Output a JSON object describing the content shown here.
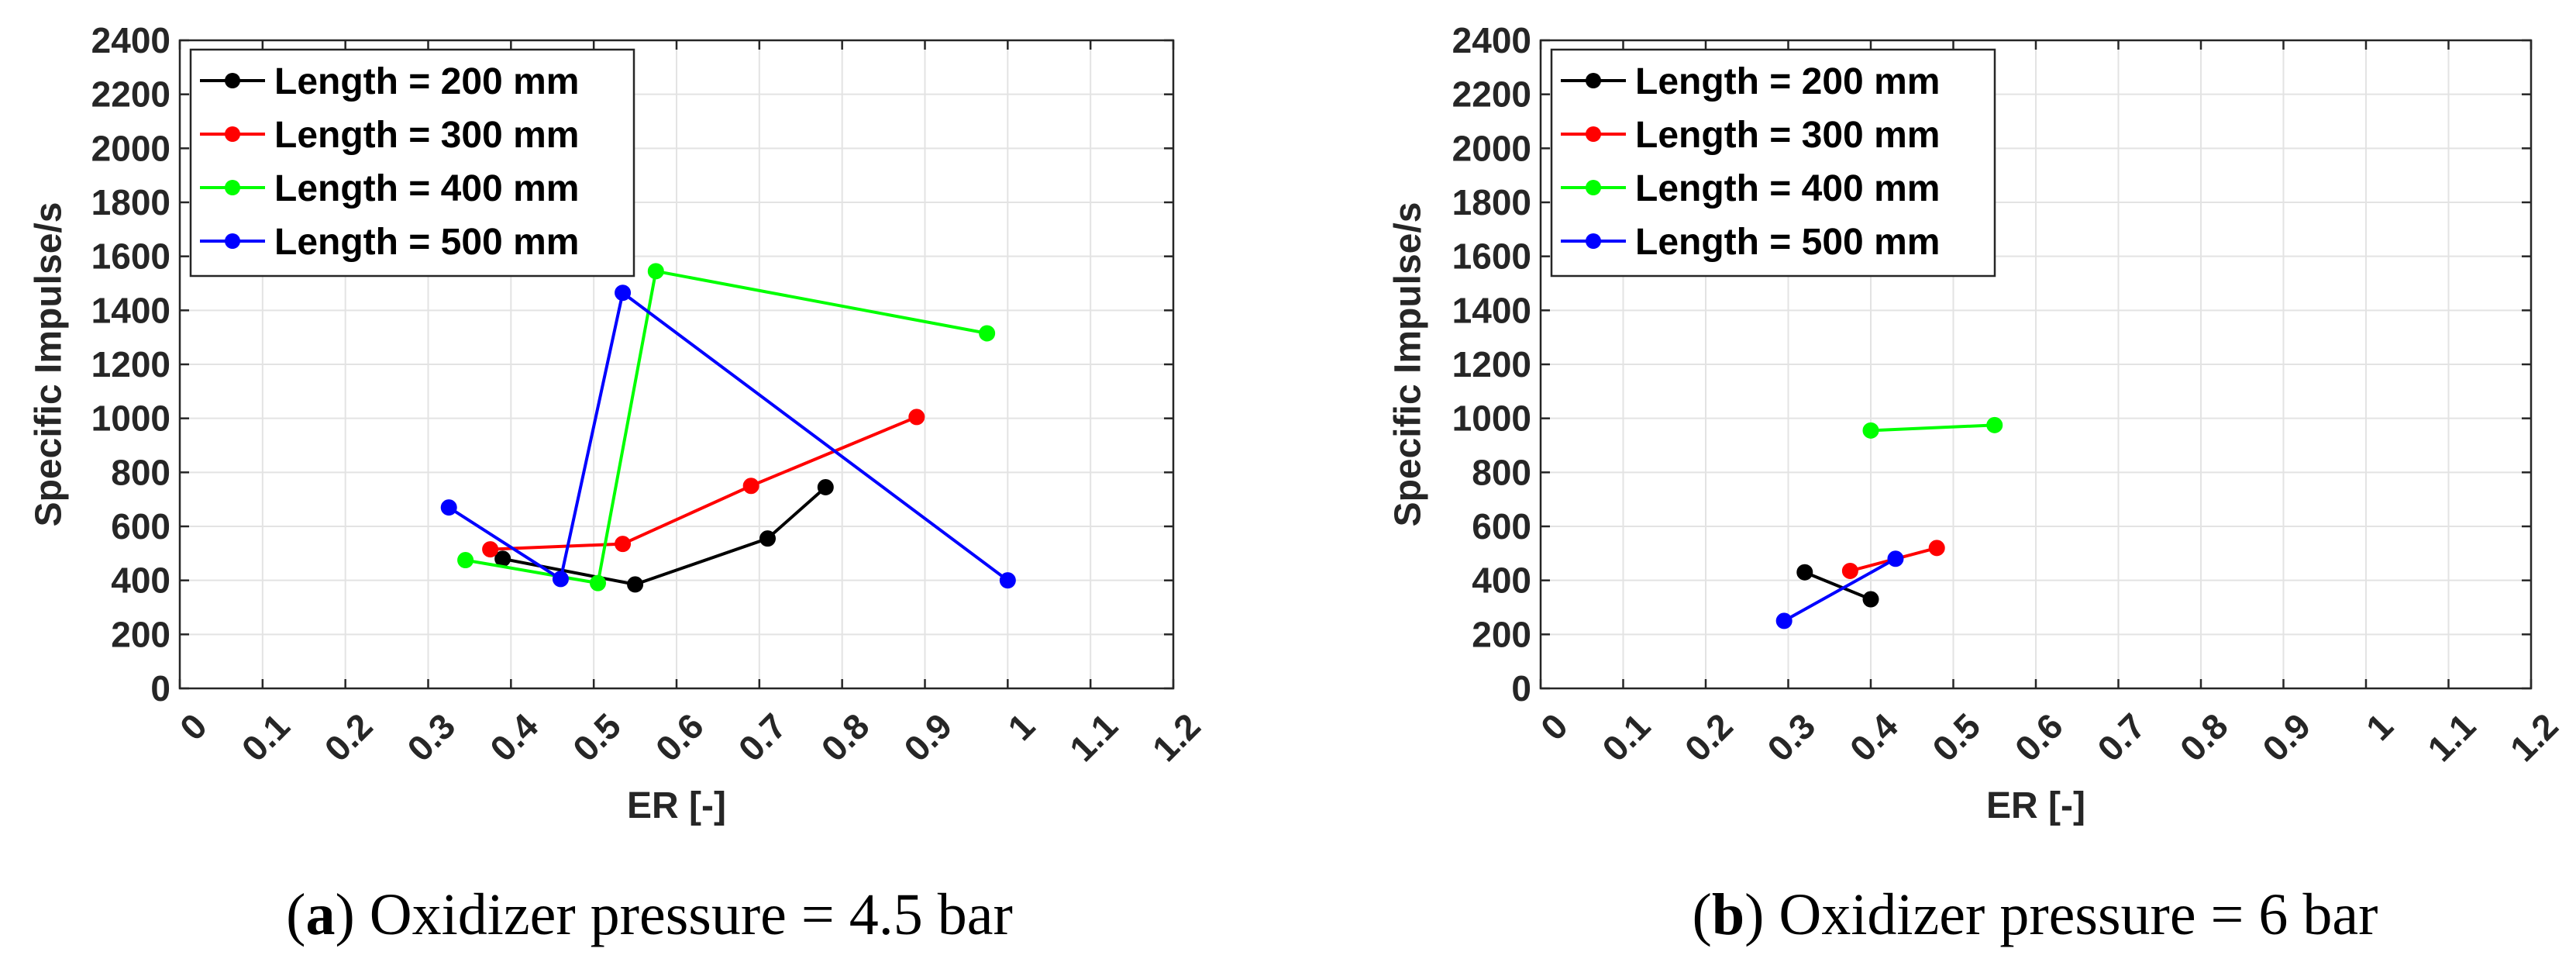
{
  "chart_data": [
    {
      "type": "line",
      "xlabel": "ER [-]",
      "ylabel": "Specific Impulse/s",
      "xlim": [
        0,
        1.2
      ],
      "ylim": [
        0,
        2400
      ],
      "x_ticks": [
        "0",
        "0.1",
        "0.2",
        "0.3",
        "0.4",
        "0.5",
        "0.6",
        "0.7",
        "0.8",
        "0.9",
        "1",
        "1.1",
        "1.2"
      ],
      "y_ticks": [
        "0",
        "200",
        "400",
        "600",
        "800",
        "1000",
        "1200",
        "1400",
        "1600",
        "1800",
        "2000",
        "2200",
        "2400"
      ],
      "grid": true,
      "legend_position": "top-left",
      "caption": {
        "letter": "a",
        "text": ") Oxidizer pressure = 4.5 bar",
        "open": "("
      },
      "series": [
        {
          "name": "Length = 200 mm",
          "color": "#000000",
          "x": [
            0.39,
            0.55,
            0.71,
            0.78
          ],
          "y": [
            480,
            385,
            555,
            745
          ]
        },
        {
          "name": "Length = 300 mm",
          "color": "#ff0000",
          "x": [
            0.375,
            0.535,
            0.69,
            0.89
          ],
          "y": [
            515,
            535,
            750,
            1005
          ]
        },
        {
          "name": "Length = 400 mm",
          "color": "#00ff00",
          "x": [
            0.345,
            0.505,
            0.575,
            0.975
          ],
          "y": [
            475,
            390,
            1545,
            1315
          ]
        },
        {
          "name": "Length = 500 mm",
          "color": "#0000ff",
          "x": [
            0.325,
            0.46,
            0.535,
            1.0
          ],
          "y": [
            670,
            405,
            1465,
            400
          ]
        }
      ]
    },
    {
      "type": "line",
      "xlabel": "ER [-]",
      "ylabel": "Specific Impulse/s",
      "xlim": [
        0,
        1.2
      ],
      "ylim": [
        0,
        2400
      ],
      "x_ticks": [
        "0",
        "0.1",
        "0.2",
        "0.3",
        "0.4",
        "0.5",
        "0.6",
        "0.7",
        "0.8",
        "0.9",
        "1",
        "1.1",
        "1.2"
      ],
      "y_ticks": [
        "0",
        "200",
        "400",
        "600",
        "800",
        "1000",
        "1200",
        "1400",
        "1600",
        "1800",
        "2000",
        "2200",
        "2400"
      ],
      "grid": true,
      "legend_position": "top-left",
      "caption": {
        "letter": "b",
        "text": ") Oxidizer pressure = 6 bar",
        "open": "("
      },
      "series": [
        {
          "name": "Length = 200 mm",
          "color": "#000000",
          "x": [
            0.32,
            0.4
          ],
          "y": [
            430,
            330
          ]
        },
        {
          "name": "Length = 300 mm",
          "color": "#ff0000",
          "x": [
            0.375,
            0.48
          ],
          "y": [
            435,
            520
          ]
        },
        {
          "name": "Length = 400 mm",
          "color": "#00ff00",
          "x": [
            0.4,
            0.55
          ],
          "y": [
            955,
            975
          ]
        },
        {
          "name": "Length = 500 mm",
          "color": "#0000ff",
          "x": [
            0.295,
            0.43
          ],
          "y": [
            250,
            480
          ]
        }
      ]
    }
  ]
}
